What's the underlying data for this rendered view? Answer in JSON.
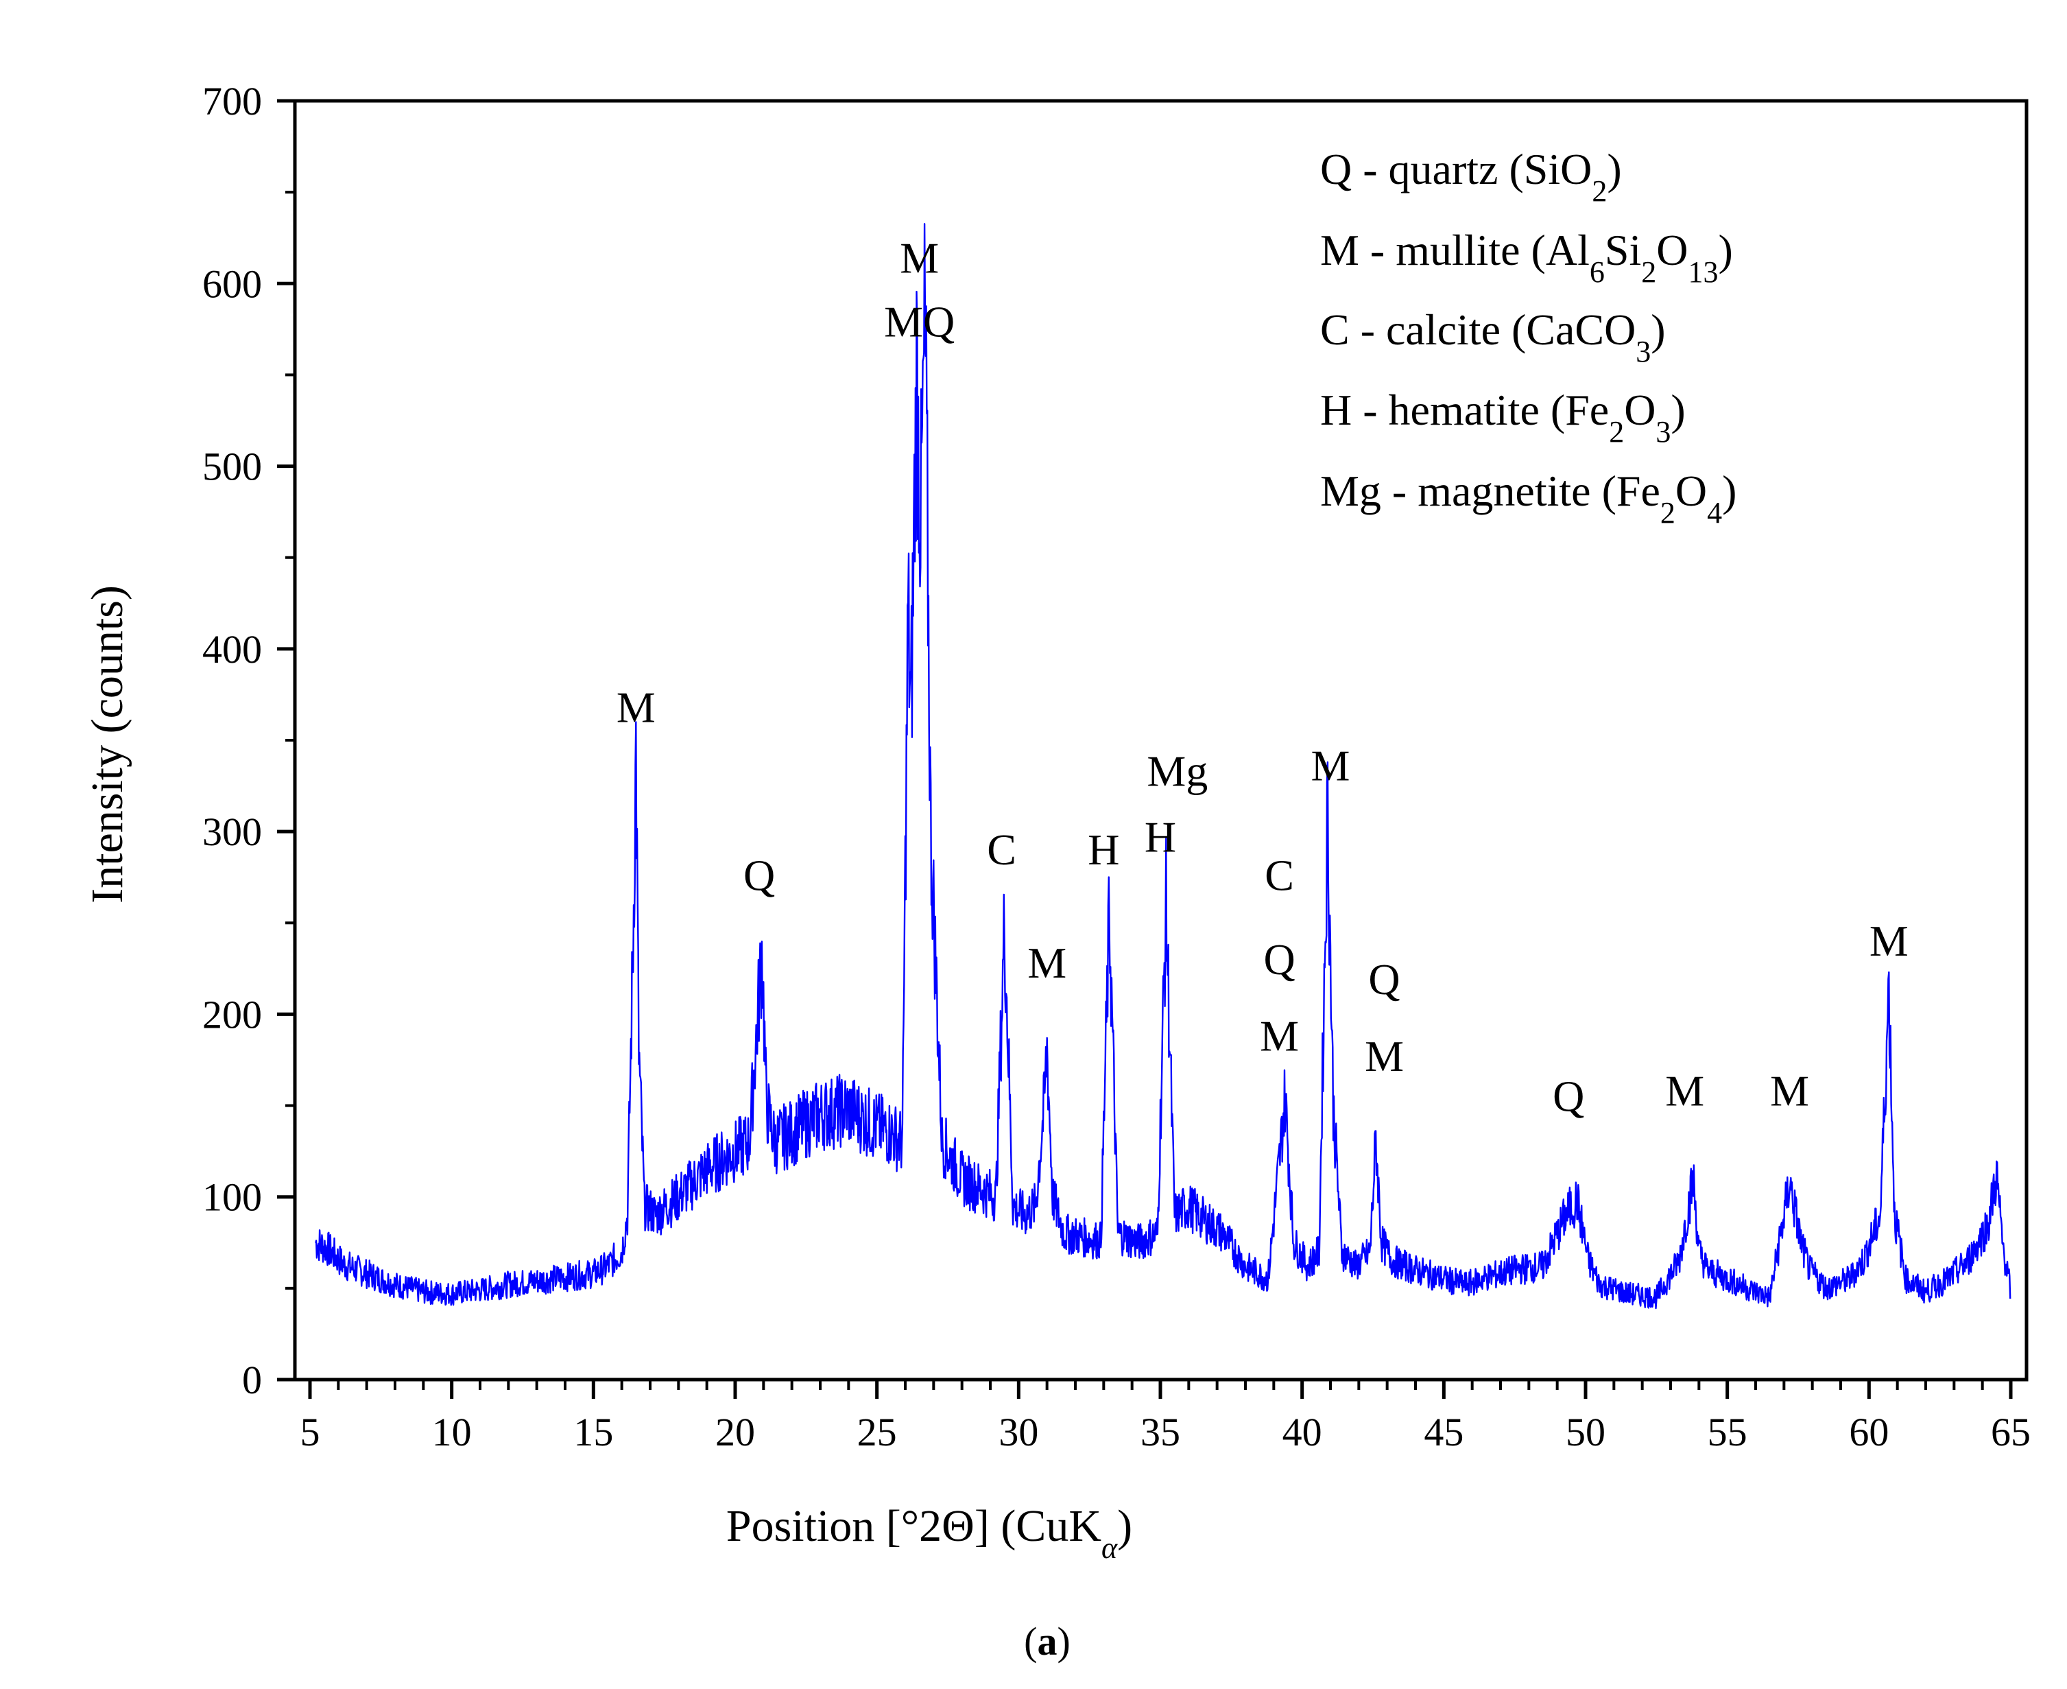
{
  "chart_data": {
    "type": "line",
    "title": "",
    "xlabel": "Position [°2Θ] (CuK",
    "xlabel_sub": "α",
    "xlabel_tail": ")",
    "ylabel": "Intensity (counts)",
    "xlim": [
      5,
      65
    ],
    "ylim": [
      0,
      700
    ],
    "xticks": [
      5,
      10,
      15,
      20,
      25,
      30,
      35,
      40,
      45,
      50,
      55,
      60,
      65
    ],
    "yticks": [
      0,
      100,
      200,
      300,
      400,
      500,
      600,
      700
    ],
    "grid": false,
    "line_color": "#0000ff",
    "series": [
      {
        "name": "XRD pattern",
        "x": [
          5.2,
          5.6,
          6.2,
          7,
          8,
          9,
          10,
          11,
          12,
          13,
          14,
          15,
          15.5,
          16,
          16.2,
          16.4,
          16.5,
          16.6,
          16.8,
          17.2,
          18,
          19,
          20,
          20.5,
          20.8,
          20.95,
          21.1,
          21.4,
          22,
          23,
          24,
          24.8,
          25.5,
          25.9,
          26.1,
          26.2,
          26.4,
          26.55,
          26.7,
          26.9,
          27.3,
          28,
          28.6,
          29.2,
          29.5,
          29.8,
          30.2,
          30.6,
          30.9,
          31.0,
          31.2,
          31.6,
          32.2,
          32.9,
          33.2,
          33.5,
          34.2,
          34.9,
          35.2,
          35.5,
          36,
          36.5,
          37.2,
          38,
          38.8,
          39.2,
          39.4,
          39.7,
          40.2,
          40.6,
          40.9,
          41.1,
          41.4,
          41.9,
          42.4,
          42.6,
          42.8,
          43.2,
          44,
          45,
          45.8,
          46.5,
          47.5,
          48.5,
          49.3,
          49.7,
          50.1,
          50.5,
          51.5,
          52.5,
          53.3,
          53.8,
          54,
          54.3,
          55,
          56,
          56.5,
          57.2,
          57.6,
          57.9,
          58.5,
          59.3,
          59.8,
          60.4,
          60.7,
          60.9,
          61.3,
          62,
          62.8,
          63.5,
          64.2,
          64.5,
          64.7,
          65
        ],
        "values": [
          75,
          72,
          63,
          58,
          52,
          48,
          47,
          49,
          52,
          54,
          56,
          58,
          62,
          70,
          90,
          240,
          345,
          180,
          95,
          90,
          100,
          115,
          125,
          130,
          200,
          235,
          150,
          130,
          135,
          145,
          148,
          140,
          135,
          130,
          420,
          360,
          550,
          470,
          580,
          300,
          130,
          110,
          105,
          100,
          250,
          95,
          90,
          95,
          150,
          182,
          100,
          80,
          78,
          76,
          255,
          80,
          75,
          80,
          260,
          90,
          95,
          88,
          80,
          62,
          55,
          120,
          155,
          75,
          62,
          70,
          312,
          150,
          70,
          62,
          70,
          132,
          75,
          65,
          60,
          55,
          52,
          56,
          60,
          62,
          90,
          98,
          65,
          52,
          47,
          45,
          65,
          110,
          70,
          60,
          55,
          48,
          45,
          108,
          75,
          60,
          50,
          55,
          65,
          90,
          215,
          90,
          55,
          48,
          55,
          65,
          85,
          112,
          75,
          48
        ]
      }
    ],
    "peak_labels": [
      {
        "text": "M",
        "x": 16.5,
        "y": 360
      },
      {
        "text": "Q",
        "x": 20.85,
        "y": 268
      },
      {
        "text": "M",
        "x": 26.5,
        "y": 606
      },
      {
        "text": "MQ",
        "x": 26.5,
        "y": 571
      },
      {
        "text": "C",
        "x": 29.4,
        "y": 282
      },
      {
        "text": "M",
        "x": 31.0,
        "y": 220
      },
      {
        "text": "H",
        "x": 33.0,
        "y": 282
      },
      {
        "text": "H",
        "x": 35.0,
        "y": 289
      },
      {
        "text": "Mg",
        "x": 35.6,
        "y": 325
      },
      {
        "text": "C",
        "x": 39.2,
        "y": 268
      },
      {
        "text": "Q",
        "x": 39.2,
        "y": 222
      },
      {
        "text": "M",
        "x": 39.2,
        "y": 180
      },
      {
        "text": "M",
        "x": 41.0,
        "y": 328
      },
      {
        "text": "Q",
        "x": 42.9,
        "y": 211
      },
      {
        "text": "M",
        "x": 42.9,
        "y": 169
      },
      {
        "text": "Q",
        "x": 49.4,
        "y": 147
      },
      {
        "text": "M",
        "x": 53.5,
        "y": 150
      },
      {
        "text": "M",
        "x": 57.2,
        "y": 150
      },
      {
        "text": "M",
        "x": 60.7,
        "y": 232
      }
    ],
    "legend": {
      "placement": "top-right",
      "entries": [
        {
          "text": "Q - quartz (SiO",
          "sub": "2",
          "tail": ")"
        },
        {
          "text": "M - mullite (Al",
          "sub": "6",
          "mid": "Si",
          "sub2": "2",
          "mid2": "O",
          "sub3": "13",
          "tail": ")"
        },
        {
          "text": "C - calcite (CaCO",
          "sub": "3",
          "tail": ")"
        },
        {
          "text": "H  - hematite (Fe",
          "sub": "2",
          "mid": "O",
          "sub2": "3",
          "tail": ")"
        },
        {
          "text": "Mg - magnetite (Fe",
          "sub": "2",
          "mid": "O",
          "sub2": "4",
          "tail": ")"
        }
      ]
    }
  },
  "caption": {
    "open": "(",
    "letter": "a",
    "close": ")"
  }
}
